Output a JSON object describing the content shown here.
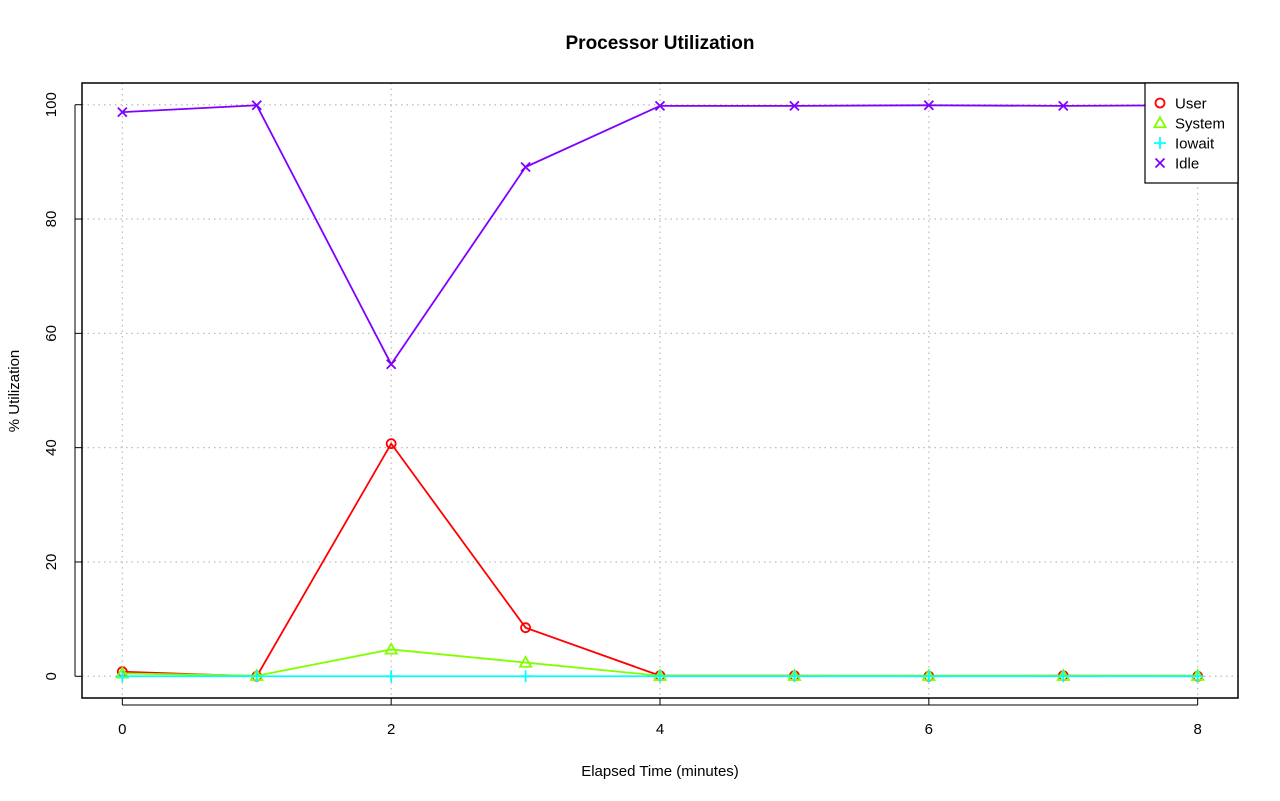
{
  "chart_data": {
    "type": "line",
    "title": "Processor Utilization",
    "xlabel": "Elapsed Time (minutes)",
    "ylabel": "% Utilization",
    "x": [
      0,
      1,
      2,
      3,
      4,
      5,
      6,
      7,
      8
    ],
    "xlim": [
      -0.3,
      8.3
    ],
    "ylim": [
      -3.8,
      103.8
    ],
    "xticks": [
      "0",
      "2",
      "4",
      "6",
      "8"
    ],
    "yticks": [
      "0",
      "20",
      "40",
      "60",
      "80",
      "100"
    ],
    "grid": true,
    "legend_position": "top-right",
    "series": [
      {
        "name": "User",
        "color": "#ff0000",
        "marker": "circle",
        "values": [
          0.8,
          0.0,
          40.7,
          8.5,
          0.1,
          0.1,
          0.0,
          0.1,
          0.0
        ]
      },
      {
        "name": "System",
        "color": "#80ff00",
        "marker": "triangle",
        "values": [
          0.5,
          0.1,
          4.7,
          2.4,
          0.1,
          0.1,
          0.1,
          0.1,
          0.1
        ]
      },
      {
        "name": "Iowait",
        "color": "#00ffff",
        "marker": "plus",
        "values": [
          0.0,
          0.0,
          0.0,
          0.0,
          0.0,
          0.0,
          0.0,
          0.0,
          0.0
        ]
      },
      {
        "name": "Idle",
        "color": "#8000ff",
        "marker": "cross",
        "values": [
          98.7,
          99.9,
          54.6,
          89.1,
          99.8,
          99.8,
          99.9,
          99.8,
          99.9
        ]
      }
    ]
  }
}
